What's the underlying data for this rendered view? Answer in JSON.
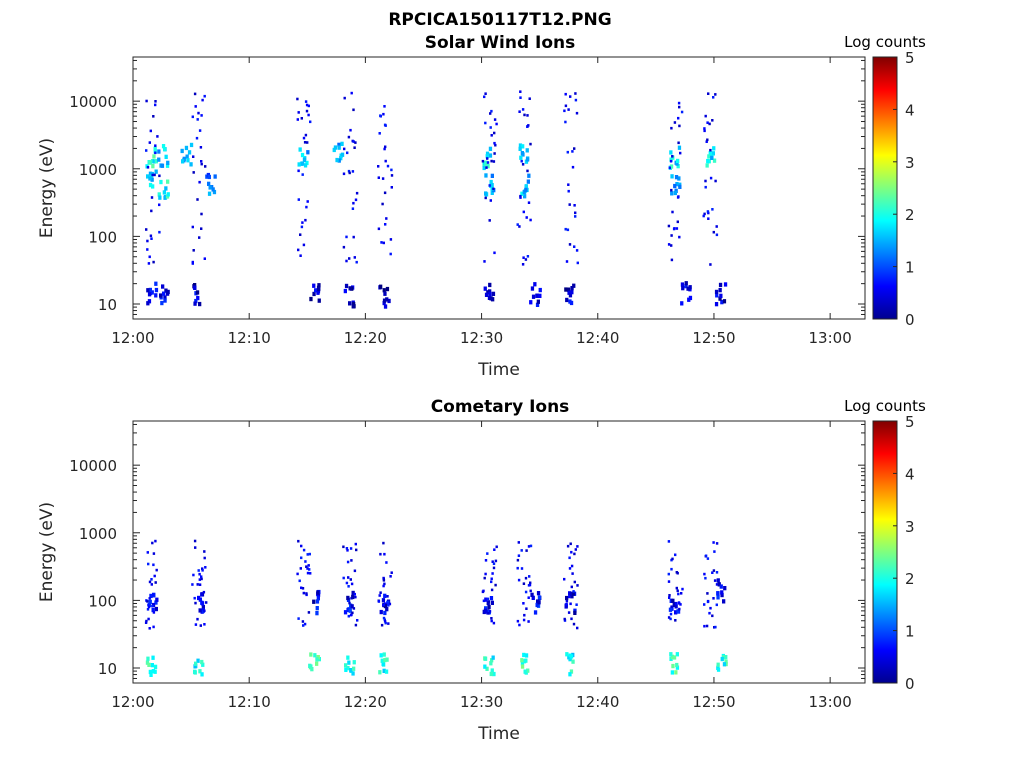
{
  "figure": {
    "title": "RPCICA150117T12.PNG"
  },
  "colors": {
    "colormap": "jet",
    "axis": "#262626",
    "background": "#ffffff"
  },
  "chart_data": [
    {
      "type": "heatmap",
      "title": "Solar Wind Ions",
      "xlabel": "Time",
      "ylabel": "Energy (eV)",
      "y_scale": "log",
      "xlim": [
        "12:00",
        "13:03"
      ],
      "ylim": [
        6,
        45000
      ],
      "x_ticks": [
        "12:00",
        "12:10",
        "12:20",
        "12:30",
        "12:40",
        "12:50",
        "13:00"
      ],
      "y_ticks": [
        "10",
        "100",
        "1000",
        "10000"
      ],
      "grid": false,
      "colorbar": {
        "label": "Log counts",
        "min": 0,
        "max": 5,
        "ticks": [
          "0",
          "1",
          "2",
          "3",
          "4",
          "5"
        ]
      },
      "sweep_times": [
        "12:01",
        "12:05",
        "12:14",
        "12:18",
        "12:21",
        "12:30",
        "12:33",
        "12:37",
        "12:46",
        "12:49"
      ],
      "cells": [
        {
          "t": "12:01",
          "e": 1600,
          "v": 2.0
        },
        {
          "t": "12:01",
          "e": 700,
          "v": 1.6
        },
        {
          "t": "12:01",
          "e": 16,
          "v": 0.6
        },
        {
          "t": "12:02",
          "e": 1600,
          "v": 1.6
        },
        {
          "t": "12:02",
          "e": 550,
          "v": 1.9
        },
        {
          "t": "12:02",
          "e": 16,
          "v": 0.5
        },
        {
          "t": "12:04",
          "e": 1700,
          "v": 1.4
        },
        {
          "t": "12:05",
          "e": 15,
          "v": 0.4
        },
        {
          "t": "12:06",
          "e": 600,
          "v": 1.2
        },
        {
          "t": "12:14",
          "e": 1700,
          "v": 1.5
        },
        {
          "t": "12:15",
          "e": 14,
          "v": 0.4
        },
        {
          "t": "12:17",
          "e": 1800,
          "v": 1.5
        },
        {
          "t": "12:18",
          "e": 14,
          "v": 0.3
        },
        {
          "t": "12:21",
          "e": 14,
          "v": 0.3
        },
        {
          "t": "12:30",
          "e": 1600,
          "v": 1.9
        },
        {
          "t": "12:30",
          "e": 600,
          "v": 1.4
        },
        {
          "t": "12:30",
          "e": 16,
          "v": 0.4
        },
        {
          "t": "12:33",
          "e": 1700,
          "v": 1.7
        },
        {
          "t": "12:33",
          "e": 600,
          "v": 1.6
        },
        {
          "t": "12:34",
          "e": 15,
          "v": 0.5
        },
        {
          "t": "12:37",
          "e": 15,
          "v": 0.4
        },
        {
          "t": "12:46",
          "e": 1600,
          "v": 1.8
        },
        {
          "t": "12:46",
          "e": 600,
          "v": 1.5
        },
        {
          "t": "12:47",
          "e": 15,
          "v": 0.5
        },
        {
          "t": "12:49",
          "e": 1700,
          "v": 1.8
        },
        {
          "t": "12:50",
          "e": 15,
          "v": 0.4
        }
      ]
    },
    {
      "type": "heatmap",
      "title": "Cometary Ions",
      "xlabel": "Time",
      "ylabel": "Energy (eV)",
      "y_scale": "log",
      "xlim": [
        "12:00",
        "13:03"
      ],
      "ylim": [
        6,
        45000
      ],
      "x_ticks": [
        "12:00",
        "12:10",
        "12:20",
        "12:30",
        "12:40",
        "12:50",
        "13:00"
      ],
      "y_ticks": [
        "10",
        "100",
        "1000",
        "10000"
      ],
      "grid": false,
      "colorbar": {
        "label": "Log counts",
        "min": 0,
        "max": 5,
        "ticks": [
          "0",
          "1",
          "2",
          "3",
          "4",
          "5"
        ]
      },
      "sweep_times": [
        "12:01",
        "12:05",
        "12:14",
        "12:18",
        "12:21",
        "12:30",
        "12:33",
        "12:37",
        "12:46",
        "12:49"
      ],
      "cells": [
        {
          "t": "12:01",
          "e": 12,
          "v": 2.0
        },
        {
          "t": "12:01",
          "e": 100,
          "v": 0.6
        },
        {
          "t": "12:05",
          "e": 12,
          "v": 1.9
        },
        {
          "t": "12:05",
          "e": 100,
          "v": 0.5
        },
        {
          "t": "12:15",
          "e": 12,
          "v": 2.1
        },
        {
          "t": "12:15",
          "e": 100,
          "v": 0.5
        },
        {
          "t": "12:18",
          "e": 12,
          "v": 2.0
        },
        {
          "t": "12:18",
          "e": 100,
          "v": 0.6
        },
        {
          "t": "12:21",
          "e": 12,
          "v": 2.0
        },
        {
          "t": "12:21",
          "e": 100,
          "v": 0.5
        },
        {
          "t": "12:30",
          "e": 12,
          "v": 2.0
        },
        {
          "t": "12:30",
          "e": 100,
          "v": 0.6
        },
        {
          "t": "12:33",
          "e": 12,
          "v": 2.1
        },
        {
          "t": "12:34",
          "e": 100,
          "v": 0.6
        },
        {
          "t": "12:37",
          "e": 12,
          "v": 1.9
        },
        {
          "t": "12:37",
          "e": 100,
          "v": 0.5
        },
        {
          "t": "12:46",
          "e": 12,
          "v": 2.1
        },
        {
          "t": "12:46",
          "e": 100,
          "v": 0.5
        },
        {
          "t": "12:50",
          "e": 12,
          "v": 2.0
        },
        {
          "t": "12:50",
          "e": 150,
          "v": 0.6
        }
      ]
    }
  ]
}
